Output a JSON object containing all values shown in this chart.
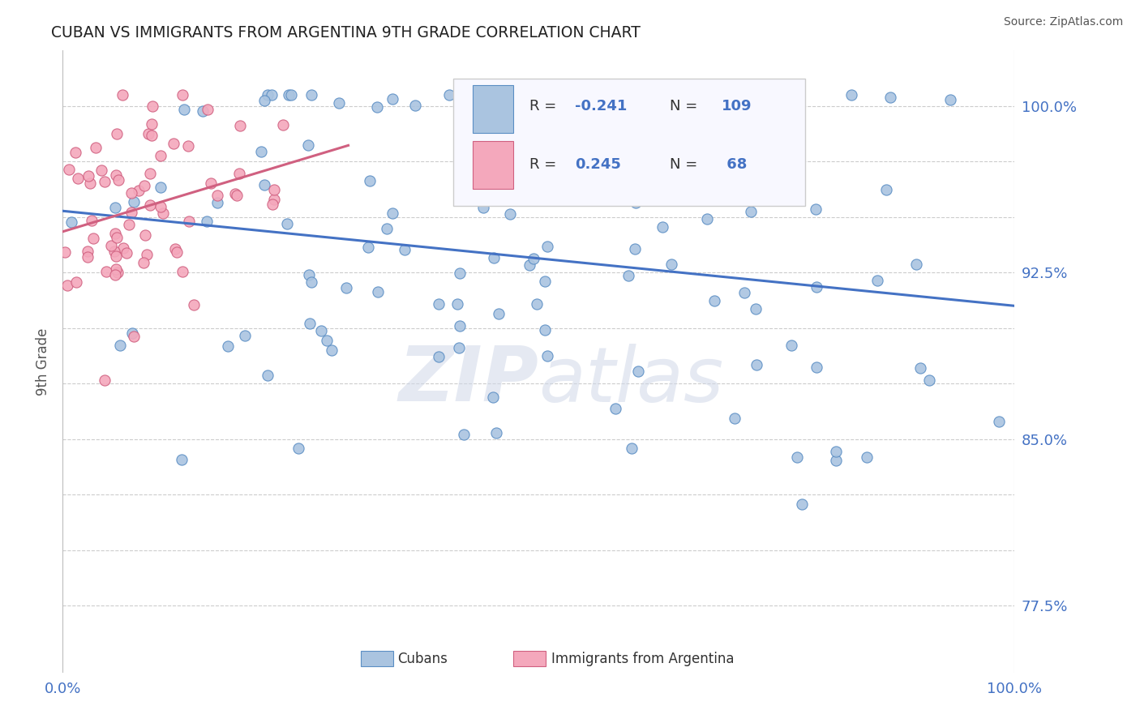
{
  "title": "CUBAN VS IMMIGRANTS FROM ARGENTINA 9TH GRADE CORRELATION CHART",
  "source_text": "Source: ZipAtlas.com",
  "ylabel": "9th Grade",
  "xmin": 0.0,
  "xmax": 1.0,
  "ymin": 0.745,
  "ymax": 1.025,
  "blue_R": -0.241,
  "blue_N": 109,
  "pink_R": 0.245,
  "pink_N": 68,
  "blue_color": "#aac4e0",
  "blue_edge_color": "#5b8ec4",
  "blue_line_color": "#4472c4",
  "pink_color": "#f4a8bc",
  "pink_edge_color": "#d06080",
  "pink_line_color": "#d06080",
  "title_color": "#222222",
  "axis_color": "#4472c4",
  "grid_color": "#cccccc",
  "watermark_zip": "ZIP",
  "watermark_atlas": "atlas",
  "legend_box_color": "#f0f0f8",
  "legend_border_color": "#cccccc"
}
